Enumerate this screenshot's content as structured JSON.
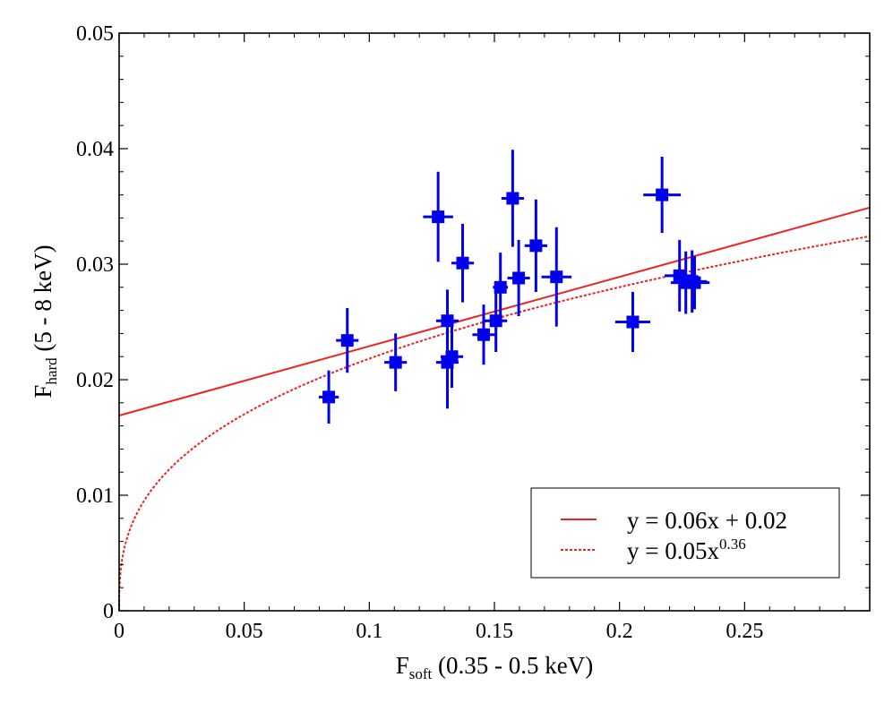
{
  "chart_data": {
    "type": "scatter",
    "xlabel": {
      "main": "F",
      "sub": "soft",
      "rest": " (0.35 - 0.5 keV)"
    },
    "ylabel": {
      "main": "F",
      "sub": "hard",
      "rest": " (5 - 8 keV)"
    },
    "xlim": [
      0,
      0.3
    ],
    "ylim": [
      0,
      0.05
    ],
    "x_ticks": [
      0,
      0.05,
      0.1,
      0.15,
      0.2,
      0.25
    ],
    "x_tick_labels": [
      "0",
      "0.05",
      "0.1",
      "0.15",
      "0.2",
      "0.25"
    ],
    "y_ticks": [
      0,
      0.01,
      0.02,
      0.03,
      0.04,
      0.05
    ],
    "y_tick_labels": [
      "0",
      "0.01",
      "0.02",
      "0.03",
      "0.04",
      "0.05"
    ],
    "grid": false,
    "points_color": "#0000ee",
    "series": [
      {
        "type": "errorbar",
        "color": "#0000ee",
        "points": [
          {
            "x": 0.0838,
            "y": 0.0185,
            "xerr": 0.004,
            "yerr": 0.0023
          },
          {
            "x": 0.0912,
            "y": 0.0234,
            "xerr": 0.0045,
            "yerr": 0.0028
          },
          {
            "x": 0.1105,
            "y": 0.0215,
            "xerr": 0.0045,
            "yerr": 0.0025
          },
          {
            "x": 0.1275,
            "y": 0.0341,
            "xerr": 0.006,
            "yerr": 0.0039
          },
          {
            "x": 0.1312,
            "y": 0.0251,
            "xerr": 0.0045,
            "yerr": 0.0027
          },
          {
            "x": 0.1312,
            "y": 0.0215,
            "xerr": 0.0045,
            "yerr": 0.004
          },
          {
            "x": 0.133,
            "y": 0.022,
            "xerr": 0.0045,
            "yerr": 0.0027
          },
          {
            "x": 0.1373,
            "y": 0.0301,
            "xerr": 0.0045,
            "yerr": 0.0034
          },
          {
            "x": 0.1457,
            "y": 0.0239,
            "xerr": 0.0045,
            "yerr": 0.0026
          },
          {
            "x": 0.1506,
            "y": 0.0251,
            "xerr": 0.0045,
            "yerr": 0.0027
          },
          {
            "x": 0.1524,
            "y": 0.028,
            "xerr": 0.003,
            "yerr": 0.003
          },
          {
            "x": 0.1573,
            "y": 0.0357,
            "xerr": 0.0045,
            "yerr": 0.0042
          },
          {
            "x": 0.1597,
            "y": 0.0288,
            "xerr": 0.0045,
            "yerr": 0.0033
          },
          {
            "x": 0.1666,
            "y": 0.0316,
            "xerr": 0.0045,
            "yerr": 0.004
          },
          {
            "x": 0.1748,
            "y": 0.0289,
            "xerr": 0.006,
            "yerr": 0.0043
          },
          {
            "x": 0.2053,
            "y": 0.025,
            "xerr": 0.007,
            "yerr": 0.0026
          },
          {
            "x": 0.217,
            "y": 0.036,
            "xerr": 0.0075,
            "yerr": 0.0033
          },
          {
            "x": 0.224,
            "y": 0.029,
            "xerr": 0.006,
            "yerr": 0.0031
          },
          {
            "x": 0.2265,
            "y": 0.0284,
            "xerr": 0.006,
            "yerr": 0.0027
          },
          {
            "x": 0.229,
            "y": 0.0285,
            "xerr": 0.006,
            "yerr": 0.0027
          },
          {
            "x": 0.23,
            "y": 0.0284,
            "xerr": 0.006,
            "yerr": 0.0023
          }
        ]
      },
      {
        "type": "line",
        "label": "y = 0.06x + 0.02",
        "color": "#ee2222",
        "style": "solid",
        "slope": 0.06,
        "intercept": 0.0169
      },
      {
        "type": "line",
        "label": "y = 0.05x",
        "label_sup": "0.36",
        "color": "#ee2222",
        "style": "dashed",
        "coef": 0.05,
        "power": 0.36
      }
    ],
    "legend": {
      "position": "lower-right",
      "entries": [
        {
          "text": "y = 0.06x + 0.02",
          "sup": ""
        },
        {
          "text": "y = 0.05x",
          "sup": "0.36"
        }
      ]
    }
  }
}
